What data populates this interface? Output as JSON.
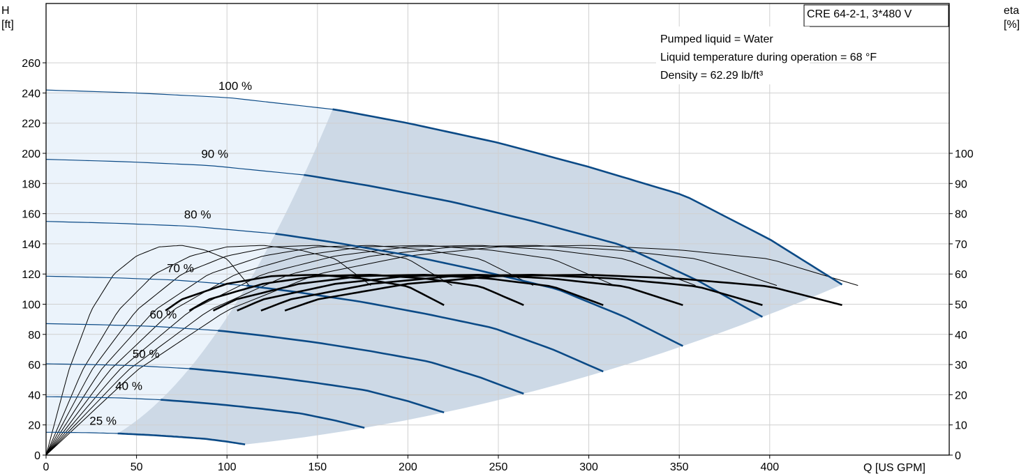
{
  "chart_data": {
    "type": "line",
    "title": "CRE 64-2-1, 3*480 V",
    "info": [
      "Pumped liquid = Water",
      "Liquid temperature during operation = 68 °F",
      "Density = 62.29 lb/ft³"
    ],
    "xlabel": "Q [US GPM]",
    "ylabel_left": [
      "H",
      "[ft]"
    ],
    "ylabel_right": [
      "eta",
      "[%]"
    ],
    "xlim": [
      0,
      450
    ],
    "ylim_left": [
      0,
      280
    ],
    "ylim_right": [
      0,
      140
    ],
    "x_ticks": [
      0,
      50,
      100,
      150,
      200,
      250,
      300,
      350,
      400
    ],
    "y_ticks_left": [
      0,
      20,
      40,
      60,
      80,
      100,
      120,
      140,
      160,
      180,
      200,
      220,
      240,
      260
    ],
    "y_ticks_right": [
      0,
      10,
      20,
      30,
      40,
      50,
      60,
      70,
      80,
      90,
      100
    ],
    "grid": true,
    "colors": {
      "head_curve": "#0b4a86",
      "efficiency_curve": "#000000",
      "operating_area": "#cdd9e6",
      "extended_area": "#ebf3fb",
      "grid": "#d0d0d0"
    },
    "head_curves": [
      {
        "name": "100 %",
        "speed": 1.0
      },
      {
        "name": "90 %",
        "speed": 0.9
      },
      {
        "name": "80 %",
        "speed": 0.8
      },
      {
        "name": "70 %",
        "speed": 0.7
      },
      {
        "name": "60 %",
        "speed": 0.6
      },
      {
        "name": "50 %",
        "speed": 0.5
      },
      {
        "name": "40 %",
        "speed": 0.4
      },
      {
        "name": "25 %",
        "speed": 0.25
      }
    ],
    "base_head_curve": {
      "q": [
        0,
        50,
        100,
        160,
        200,
        250,
        300,
        353,
        400,
        440
      ],
      "h": [
        242,
        240,
        237,
        229,
        220,
        207,
        191,
        172,
        143,
        113
      ]
    },
    "base_efficiency_curve": {
      "q": [
        0,
        50,
        100,
        150,
        200,
        250,
        300,
        350,
        400,
        450
      ],
      "eta": [
        0,
        28,
        48,
        60,
        66,
        69,
        69.5,
        68,
        65,
        56
      ]
    },
    "efficiency_speed_factors": [
      1.0,
      0.9,
      0.8,
      0.7,
      0.6,
      0.5
    ],
    "thin_efficiency_curves": [
      {
        "name": "100 %",
        "speed": 1.0
      },
      {
        "name": "90 %",
        "speed": 0.9
      },
      {
        "name": "80 %",
        "speed": 0.8
      },
      {
        "name": "70 %",
        "speed": 0.7
      },
      {
        "name": "60 %",
        "speed": 0.6
      },
      {
        "name": "50 %",
        "speed": 0.5
      },
      {
        "name": "40 %",
        "speed": 0.4
      },
      {
        "name": "25 %",
        "speed": 0.25
      }
    ],
    "efficiency_peak": 77.5,
    "efficiency_peak_q": 0.62
  }
}
